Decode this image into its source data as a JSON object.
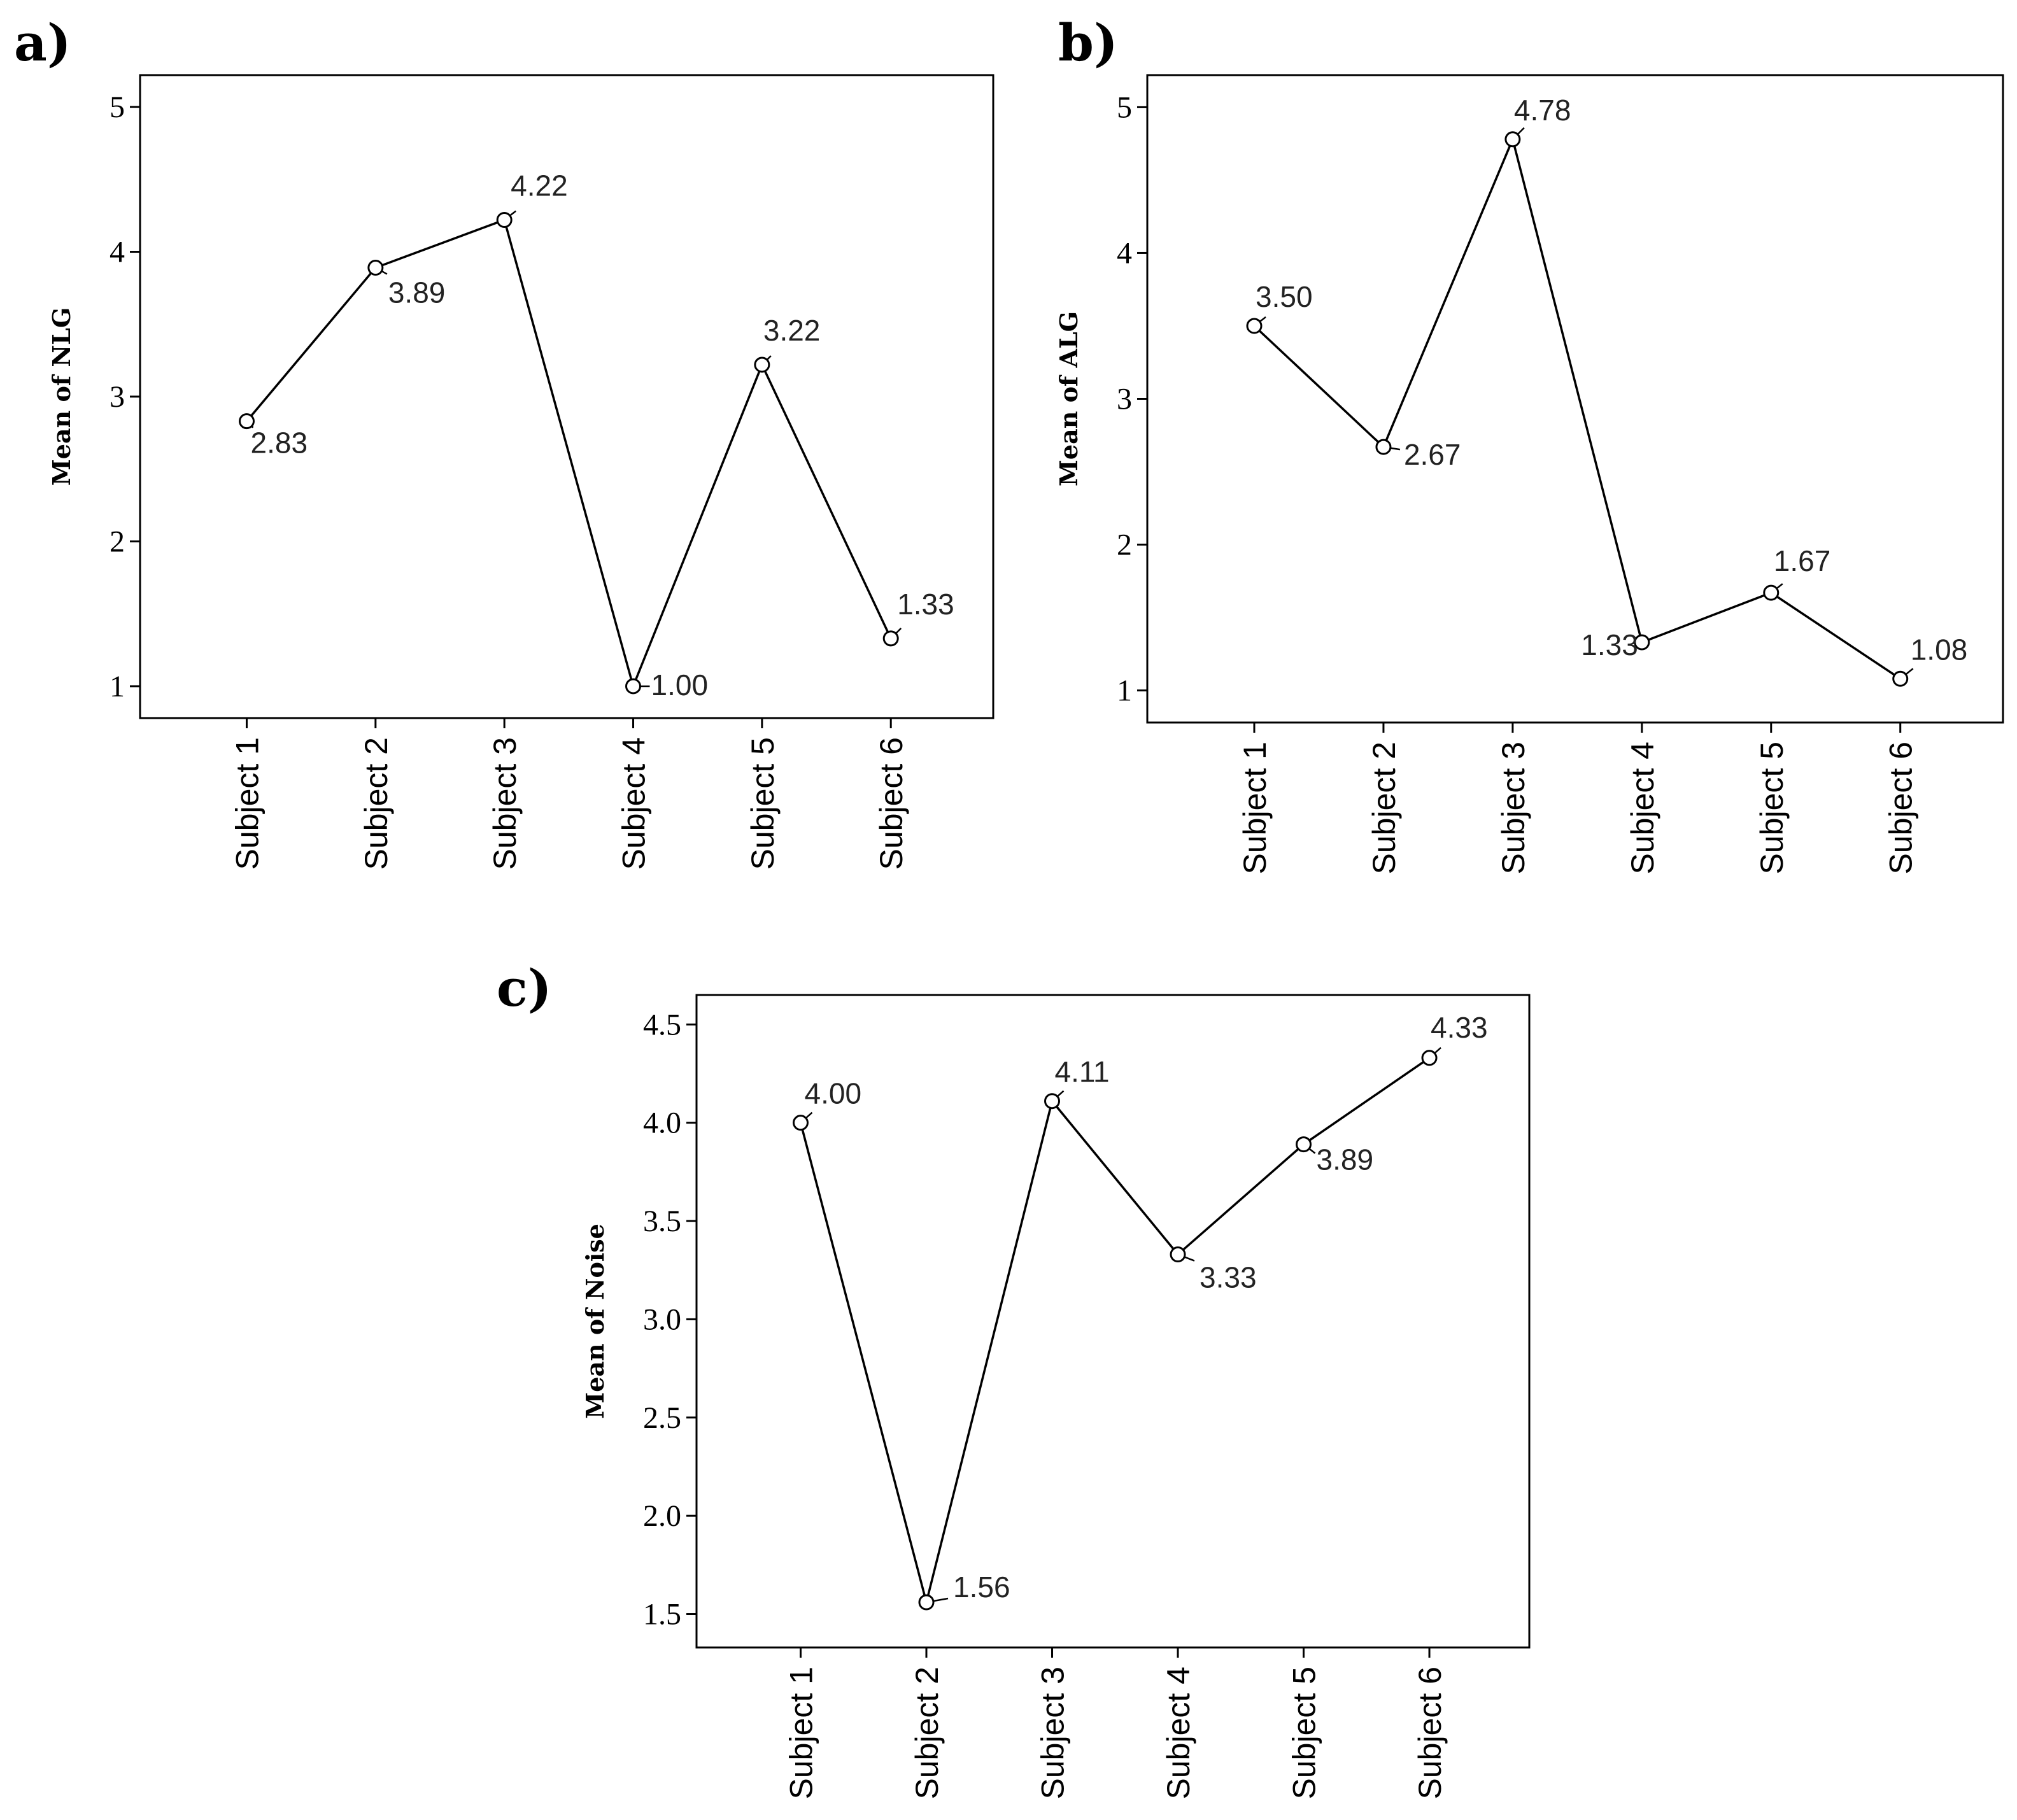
{
  "chart_data": [
    {
      "panel": "a)",
      "type": "line",
      "title": "",
      "xlabel": "",
      "ylabel": "Mean of NLG",
      "categories": [
        "Subject 1",
        "Subject 2",
        "Subject 3",
        "Subject 4",
        "Subject 5",
        "Subject 6"
      ],
      "values": [
        2.83,
        3.89,
        4.22,
        1.0,
        3.22,
        1.33
      ],
      "data_labels": [
        "2.83",
        "3.89",
        "4.22",
        "1.00",
        "3.22",
        "1.33"
      ],
      "ylim": [
        0.78,
        5.22
      ],
      "yticks": [
        1,
        2,
        3,
        4,
        5
      ],
      "ytick_labels": [
        "1",
        "2",
        "3",
        "4",
        "5"
      ],
      "grid": false,
      "legend": "none"
    },
    {
      "panel": "b)",
      "type": "line",
      "title": "",
      "xlabel": "",
      "ylabel": "Mean of ALG",
      "categories": [
        "Subject 1",
        "Subject 2",
        "Subject 3",
        "Subject 4",
        "Subject 5",
        "Subject 6"
      ],
      "values": [
        3.5,
        2.67,
        4.78,
        1.33,
        1.67,
        1.08
      ],
      "data_labels": [
        "3.50",
        "2.67",
        "4.78",
        "1.33",
        "1.67",
        "1.08"
      ],
      "ylim": [
        0.78,
        5.22
      ],
      "yticks": [
        1,
        2,
        3,
        4,
        5
      ],
      "ytick_labels": [
        "1",
        "2",
        "3",
        "4",
        "5"
      ],
      "grid": false,
      "legend": "none"
    },
    {
      "panel": "c)",
      "type": "line",
      "title": "",
      "xlabel": "",
      "ylabel": "Mean of Noise",
      "categories": [
        "Subject 1",
        "Subject 2",
        "Subject 3",
        "Subject 4",
        "Subject 5",
        "Subject 6"
      ],
      "values": [
        4.0,
        1.56,
        4.11,
        3.33,
        3.89,
        4.33
      ],
      "data_labels": [
        "4.00",
        "1.56",
        "4.11",
        "3.33",
        "3.89",
        "4.33"
      ],
      "ylim": [
        1.33,
        4.65
      ],
      "yticks": [
        1.5,
        2.0,
        2.5,
        3.0,
        3.5,
        4.0,
        4.5
      ],
      "ytick_labels": [
        "1.5",
        "2.0",
        "2.5",
        "3.0",
        "3.5",
        "4.0",
        "4.5"
      ],
      "grid": false,
      "legend": "none"
    }
  ]
}
